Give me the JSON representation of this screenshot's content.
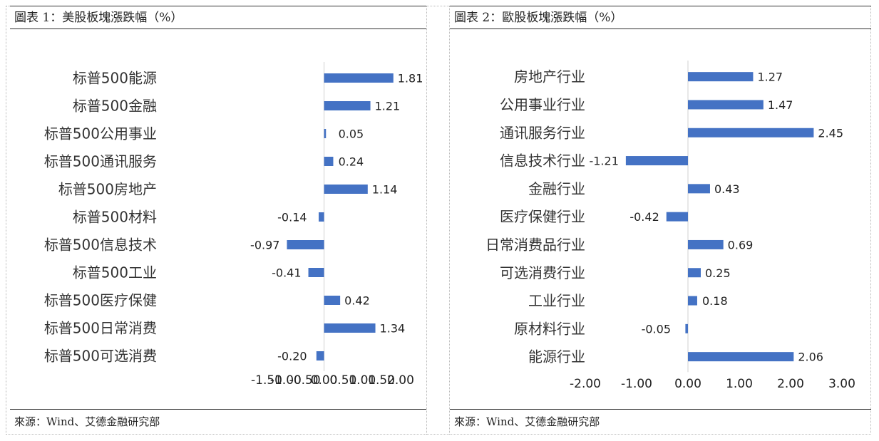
{
  "panels": [
    {
      "title": "圖表 1：美股板塊漲跌幅（%）",
      "source": "來源：Wind、艾德金融研究部",
      "chart_data": {
        "type": "bar",
        "orientation": "horizontal",
        "categories": [
          "标普500能源",
          "标普500金融",
          "标普500公用事业",
          "标普500通讯服务",
          "标普500房地产",
          "标普500材料",
          "标普500信息技术",
          "标普500工业",
          "标普500医疗保健",
          "标普500日常消费",
          "标普500可选消费"
        ],
        "values": [
          1.81,
          1.21,
          0.05,
          0.24,
          1.14,
          -0.14,
          -0.97,
          -0.41,
          0.42,
          1.34,
          -0.2
        ],
        "value_labels": [
          "1.81",
          "1.21",
          "0.05",
          "0.24",
          "1.14",
          "-0.14",
          "-0.97",
          "-0.41",
          "0.42",
          "1.34",
          "-0.20"
        ],
        "xlim": [
          -1.5,
          2.0
        ],
        "ticks": [
          -1.5,
          -1.0,
          -0.5,
          0,
          0.5,
          1.0,
          1.5,
          2.0
        ],
        "tick_labels": [
          "-1.50",
          "-1.00",
          "-0.50",
          "0.00",
          "0.50",
          "1.00",
          "1.50",
          "2.00"
        ],
        "bar_color": "#4472C4",
        "grid": false,
        "legend": "none"
      }
    },
    {
      "title": "圖表 2：歐股板塊漲跌幅（%）",
      "source": "來源：Wind、艾德金融研究部",
      "chart_data": {
        "type": "bar",
        "orientation": "horizontal",
        "categories": [
          "房地产行业",
          "公用事业行业",
          "通讯服务行业",
          "信息技术行业",
          "金融行业",
          "医疗保健行业",
          "日常消费品行业",
          "可选消费行业",
          "工业行业",
          "原材料行业",
          "能源行业"
        ],
        "values": [
          1.27,
          1.47,
          2.45,
          -1.21,
          0.43,
          -0.42,
          0.69,
          0.25,
          0.18,
          -0.05,
          2.06
        ],
        "value_labels": [
          "1.27",
          "1.47",
          "2.45",
          "-1.21",
          "0.43",
          "-0.42",
          "0.69",
          "0.25",
          "0.18",
          "-0.05",
          "2.06"
        ],
        "xlim": [
          -2.0,
          3.0
        ],
        "ticks": [
          -2.0,
          -1.0,
          0,
          1.0,
          2.0,
          3.0
        ],
        "tick_labels": [
          "-2.00",
          "-1.00",
          "0.00",
          "1.00",
          "2.00",
          "3.00"
        ],
        "bar_color": "#4472C4",
        "grid": false,
        "legend": "none"
      }
    }
  ]
}
